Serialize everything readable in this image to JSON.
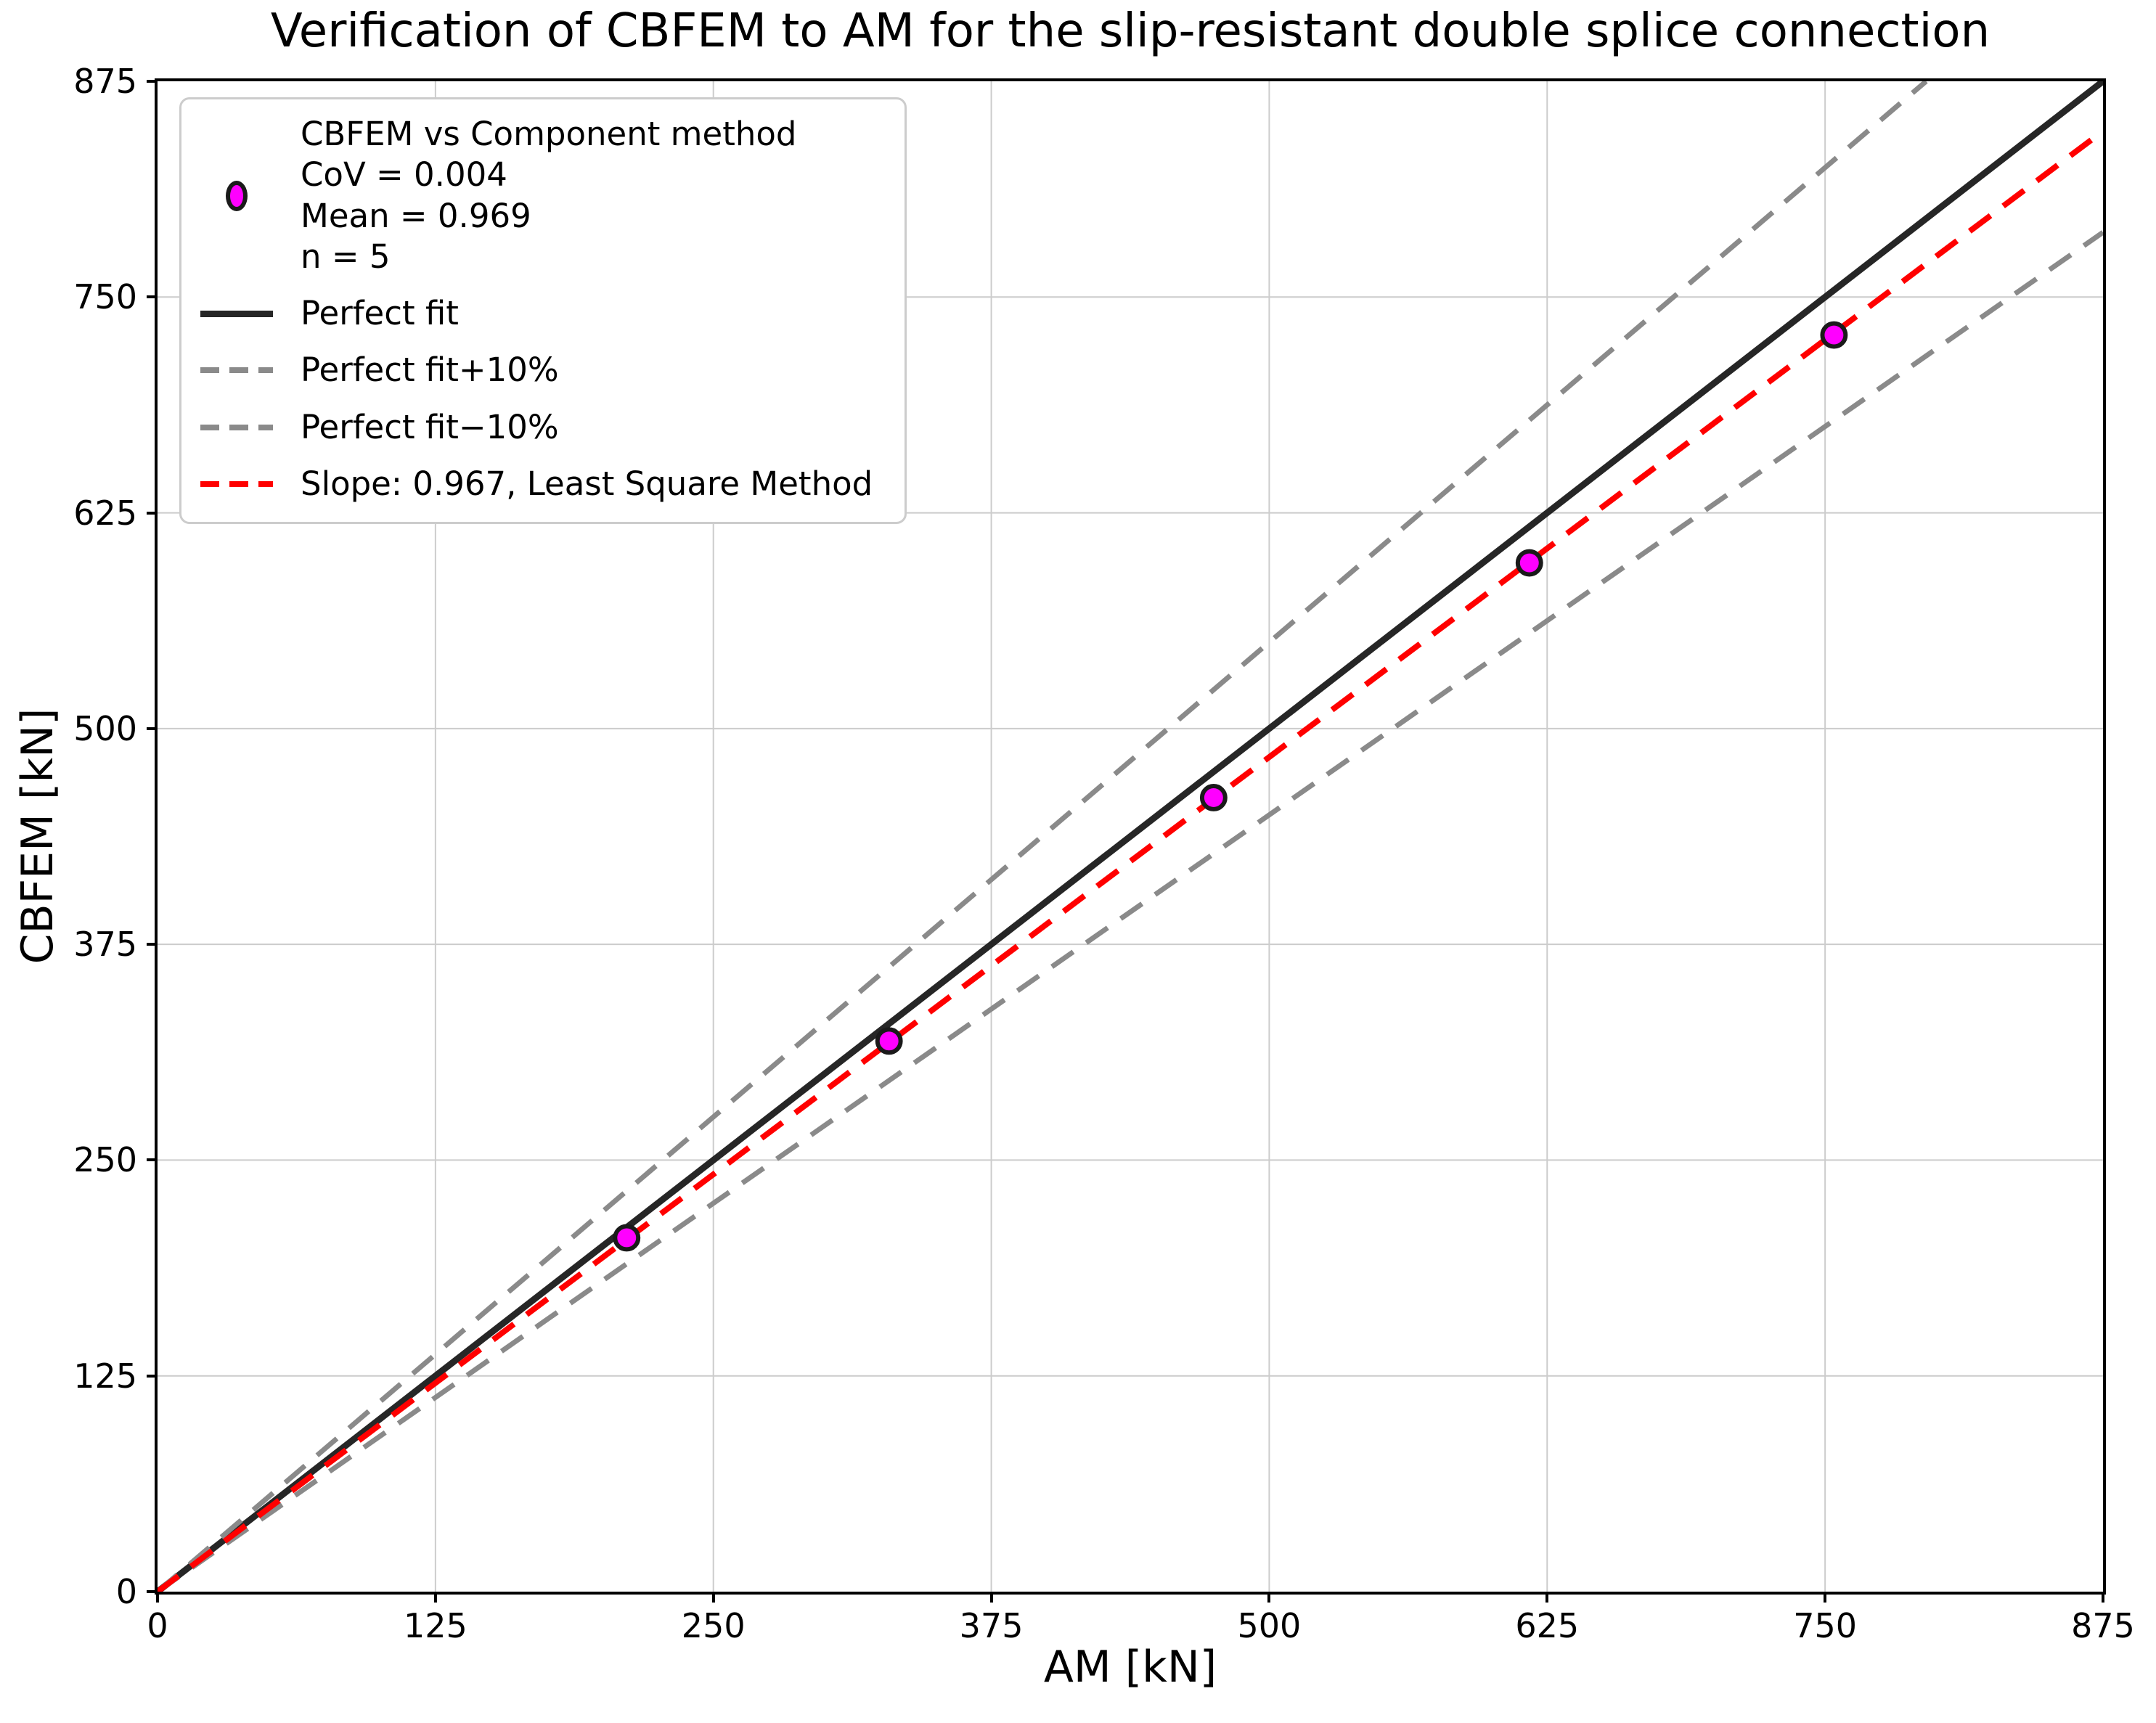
{
  "figure": {
    "title": "Verification of CBFEM to AM for the slip-resistant double splice connection"
  },
  "axes": {
    "xlabel": "AM [kN]",
    "ylabel": "CBFEM [kN]",
    "xticks": [
      0,
      125,
      250,
      375,
      500,
      625,
      750,
      875
    ],
    "yticks": [
      0,
      125,
      250,
      375,
      500,
      625,
      750,
      875
    ],
    "grid": true,
    "grid_color": "#cccccc",
    "spine_color": "#000000"
  },
  "legend": {
    "position": "upper left",
    "entries": [
      {
        "symbol": "marker",
        "color": "#ff00ff",
        "edge": "#1a1a1a",
        "lines": [
          "CBFEM vs Component method",
          "CoV = 0.004",
          "Mean = 0.969",
          "n = 5"
        ]
      },
      {
        "symbol": "line-solid",
        "color": "#262626",
        "lines": [
          "Perfect fit"
        ]
      },
      {
        "symbol": "line-dashed",
        "color": "#8a8a8a",
        "lines": [
          "Perfect fit+10%"
        ]
      },
      {
        "symbol": "line-dashed",
        "color": "#8a8a8a",
        "lines": [
          "Perfect fit−10%"
        ]
      },
      {
        "symbol": "line-dashed",
        "color": "#ff0000",
        "lines": [
          "Slope: 0.967, Least Square Method"
        ]
      }
    ]
  },
  "chart_data": {
    "type": "scatter",
    "title": "Verification of CBFEM to AM for the slip-resistant double splice connection",
    "xlabel": "AM [kN]",
    "ylabel": "CBFEM [kN]",
    "xlim": [
      0,
      875
    ],
    "ylim": [
      0,
      875
    ],
    "grid": true,
    "legend_position": "upper left",
    "series_name": "CBFEM vs Component method",
    "stats": {
      "CoV": 0.004,
      "Mean": 0.969,
      "n": 5
    },
    "points": {
      "x": [
        211,
        329,
        475,
        617,
        754
      ],
      "y": [
        205,
        319,
        460,
        596,
        728
      ],
      "marker_fill": "#ff00ff",
      "marker_edge": "#1a1a1a"
    },
    "lines": [
      {
        "name": "Perfect fit",
        "slope": 1.0,
        "style": "solid",
        "color": "#262626",
        "width": 9
      },
      {
        "name": "Perfect fit+10%",
        "slope": 1.1,
        "style": "dashed",
        "color": "#8a8a8a",
        "width": 7
      },
      {
        "name": "Perfect fit−10%",
        "slope": 0.9,
        "style": "dashed",
        "color": "#8a8a8a",
        "width": 7
      },
      {
        "name": "Slope: 0.967, Least Square Method",
        "slope": 0.967,
        "style": "dashed",
        "color": "#ff0000",
        "width": 8
      }
    ]
  }
}
